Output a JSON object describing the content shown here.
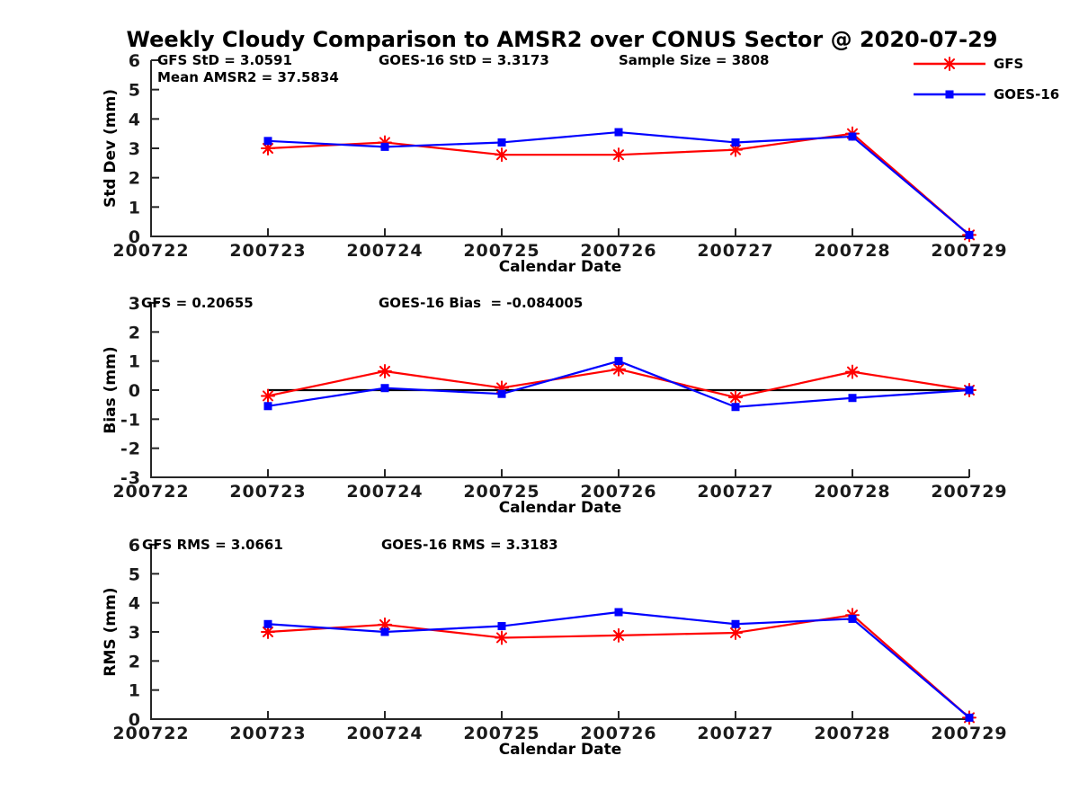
{
  "title": "Weekly Cloudy Comparison to AMSR2 over CONUS Sector @ 2020-07-29",
  "colors": {
    "gfs": "#ff0000",
    "goes16": "#0000ff",
    "axis": "#262626",
    "zero_line": "#000000"
  },
  "legend": {
    "position": "top-right-outside",
    "items": [
      {
        "label": "GFS",
        "color": "#ff0000",
        "marker": "asterisk"
      },
      {
        "label": "GOES-16",
        "color": "#0000ff",
        "marker": "square"
      }
    ]
  },
  "chart_data": [
    {
      "type": "line",
      "name": "std-dev",
      "ylabel": "Std Dev (mm)",
      "xlabel": "Calendar Date",
      "ylim": [
        0,
        6
      ],
      "yticks": [
        "0",
        "1",
        "2",
        "3",
        "4",
        "5",
        "6"
      ],
      "xticks": [
        "200722",
        "200723",
        "200724",
        "200725",
        "200726",
        "200727",
        "200728",
        "200729"
      ],
      "x": [
        "200723",
        "200724",
        "200725",
        "200726",
        "200727",
        "200728",
        "200729"
      ],
      "grid": false,
      "zero_line": false,
      "series": [
        {
          "name": "GFS",
          "color": "#ff0000",
          "marker": "asterisk",
          "values": [
            3.0,
            3.2,
            2.78,
            2.78,
            2.95,
            3.5,
            0.05
          ]
        },
        {
          "name": "GOES-16",
          "color": "#0000ff",
          "marker": "square",
          "values": [
            3.25,
            3.05,
            3.2,
            3.55,
            3.2,
            3.4,
            0.05
          ]
        }
      ],
      "annotations": [
        "GFS StD = 3.0591",
        "Mean AMSR2 = 37.5834",
        "GOES-16 StD = 3.3173",
        "Sample Size = 3808"
      ]
    },
    {
      "type": "line",
      "name": "bias",
      "ylabel": "Bias (mm)",
      "xlabel": "Calendar Date",
      "ylim": [
        -3,
        3
      ],
      "yticks": [
        "-3",
        "-2",
        "-1",
        "0",
        "1",
        "2",
        "3"
      ],
      "xticks": [
        "200722",
        "200723",
        "200724",
        "200725",
        "200726",
        "200727",
        "200728",
        "200729"
      ],
      "x": [
        "200723",
        "200724",
        "200725",
        "200726",
        "200727",
        "200728",
        "200729"
      ],
      "grid": false,
      "zero_line": true,
      "series": [
        {
          "name": "GFS",
          "color": "#ff0000",
          "marker": "asterisk",
          "values": [
            -0.2,
            0.65,
            0.08,
            0.72,
            -0.25,
            0.63,
            0.0
          ]
        },
        {
          "name": "GOES-16",
          "color": "#0000ff",
          "marker": "square",
          "values": [
            -0.55,
            0.07,
            -0.13,
            1.0,
            -0.58,
            -0.27,
            0.0
          ]
        }
      ],
      "annotations": [
        "GFS = 0.20655",
        "GOES-16 Bias  = -0.084005"
      ]
    },
    {
      "type": "line",
      "name": "rms",
      "ylabel": "RMS (mm)",
      "xlabel": "Calendar Date",
      "ylim": [
        0,
        6
      ],
      "yticks": [
        "0",
        "1",
        "2",
        "3",
        "4",
        "5",
        "6"
      ],
      "xticks": [
        "200722",
        "200723",
        "200724",
        "200725",
        "200726",
        "200727",
        "200728",
        "200729"
      ],
      "x": [
        "200723",
        "200724",
        "200725",
        "200726",
        "200727",
        "200728",
        "200729"
      ],
      "grid": false,
      "zero_line": false,
      "series": [
        {
          "name": "GFS",
          "color": "#ff0000",
          "marker": "asterisk",
          "values": [
            3.0,
            3.25,
            2.8,
            2.88,
            2.97,
            3.58,
            0.05
          ]
        },
        {
          "name": "GOES-16",
          "color": "#0000ff",
          "marker": "square",
          "values": [
            3.27,
            3.0,
            3.2,
            3.68,
            3.27,
            3.45,
            0.05
          ]
        }
      ],
      "annotations": [
        "GFS RMS = 3.0661",
        "GOES-16 RMS = 3.3183"
      ]
    }
  ]
}
